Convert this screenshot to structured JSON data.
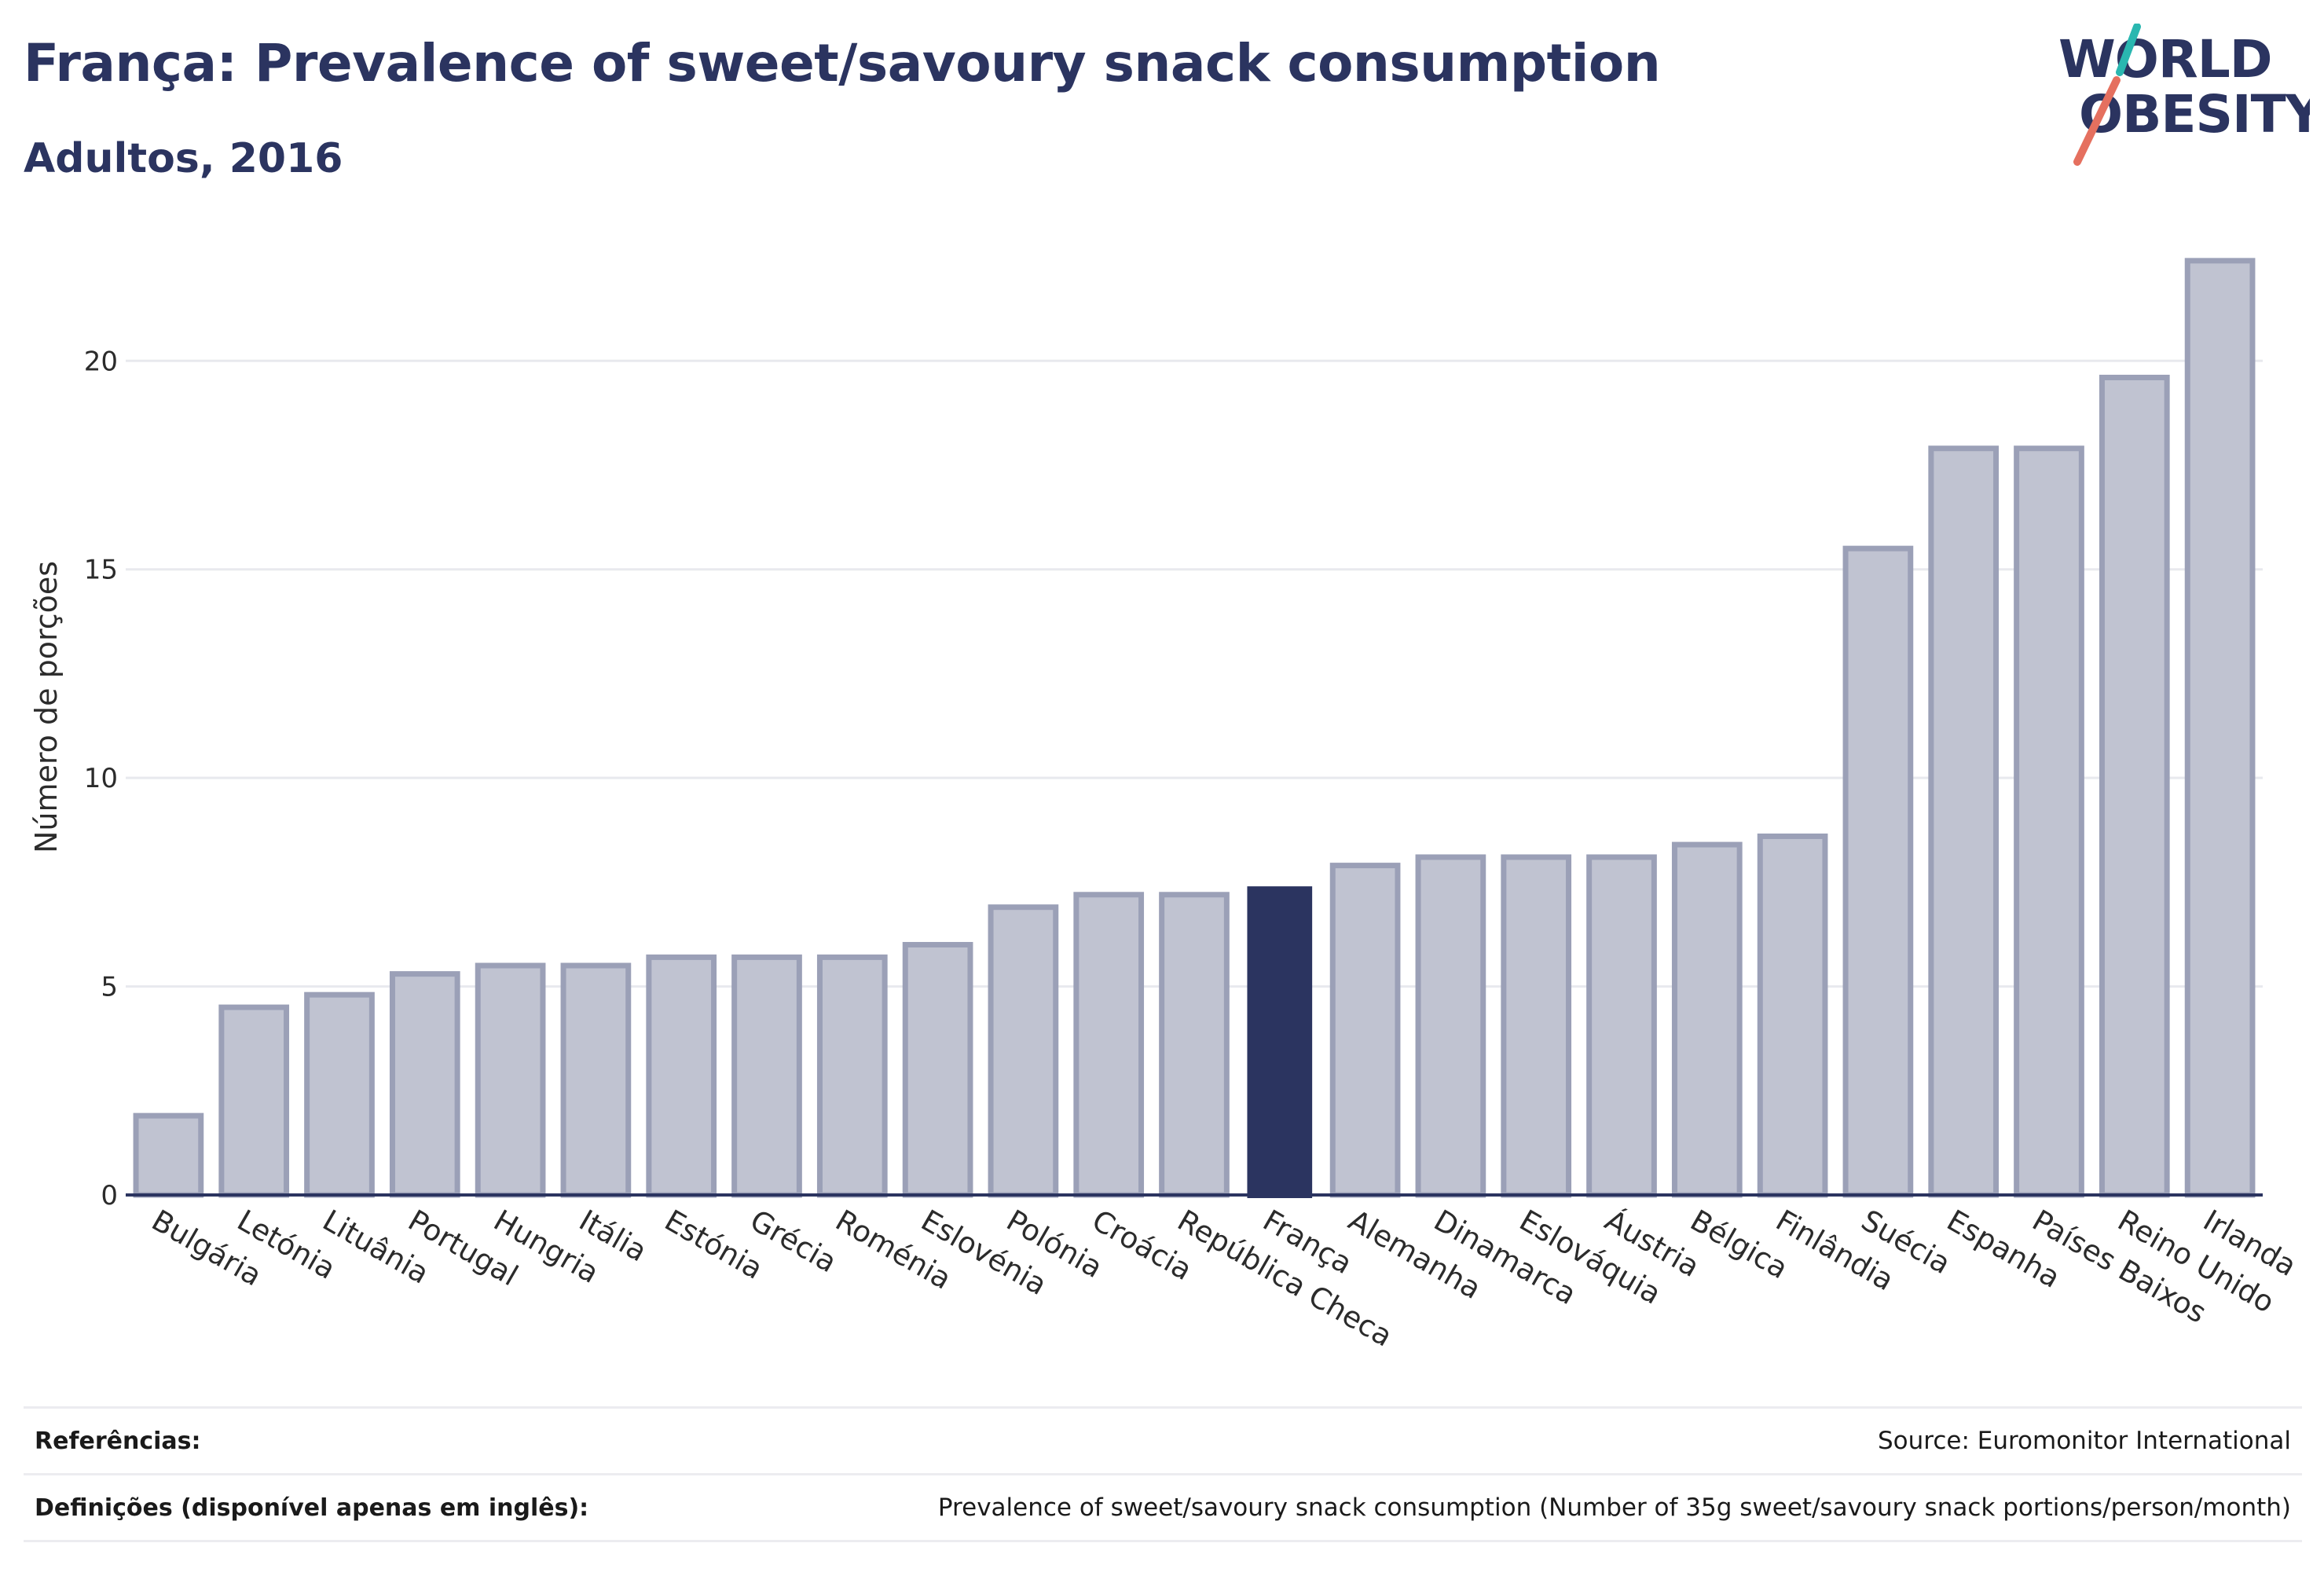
{
  "header": {
    "title": "França: Prevalence of sweet/savoury snack consumption",
    "subtitle": "Adultos, 2016"
  },
  "logo": {
    "line1": "WORLD",
    "line2": "OBESITY",
    "accent_colors": [
      "#2ab7b0",
      "#e5705f"
    ]
  },
  "colors": {
    "highlight_bar": "#2b3460",
    "other_bar": "#c0c3d1",
    "other_bar_border": "#9ba0b7",
    "grid": "#e8e9ee",
    "axis": "#2b3460"
  },
  "chart_data": {
    "type": "bar",
    "title": "França: Prevalence of sweet/savoury snack consumption",
    "subtitle": "Adultos, 2016",
    "xlabel": "",
    "ylabel": "Número de porções",
    "ylim": [
      0,
      23
    ],
    "yticks": [
      0,
      5,
      10,
      15,
      20
    ],
    "grid": true,
    "highlight": "França",
    "categories": [
      "Bulgária",
      "Letónia",
      "Lituânia",
      "Portugal",
      "Hungria",
      "Itália",
      "Estónia",
      "Grécia",
      "Roménia",
      "Eslovénia",
      "Polónia",
      "Croácia",
      "República Checa",
      "França",
      "Alemanha",
      "Dinamarca",
      "Eslováquia",
      "Áustria",
      "Bélgica",
      "Finlândia",
      "Suécia",
      "Espanha",
      "Países Baixos",
      "Reino Unido",
      "Irlanda"
    ],
    "values": [
      1.9,
      4.5,
      4.8,
      5.3,
      5.5,
      5.5,
      5.7,
      5.7,
      5.7,
      6.0,
      6.9,
      7.2,
      7.2,
      7.4,
      7.9,
      8.1,
      8.1,
      8.1,
      8.4,
      8.6,
      15.5,
      17.9,
      17.9,
      19.6,
      22.4
    ]
  },
  "footer": {
    "references_label": "Referências:",
    "references_value": "Source: Euromonitor International",
    "definitions_label": "Definições (disponível apenas em inglês):",
    "definitions_value": "Prevalence of sweet/savoury snack consumption (Number of 35g sweet/savoury snack portions/person/month)"
  }
}
